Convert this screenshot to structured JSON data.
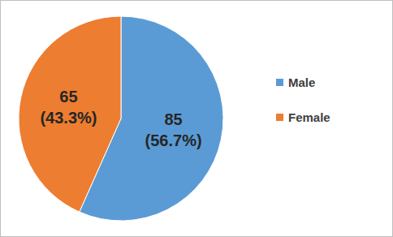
{
  "chart_data": {
    "type": "pie",
    "categories": [
      "Male",
      "Female"
    ],
    "values": [
      85,
      65
    ],
    "value_labels": [
      "85 (56.7%)",
      "65 (43.3%)"
    ],
    "colors": [
      "#5b9bd5",
      "#ed7d31"
    ],
    "data_labels": true,
    "legend": "right"
  }
}
